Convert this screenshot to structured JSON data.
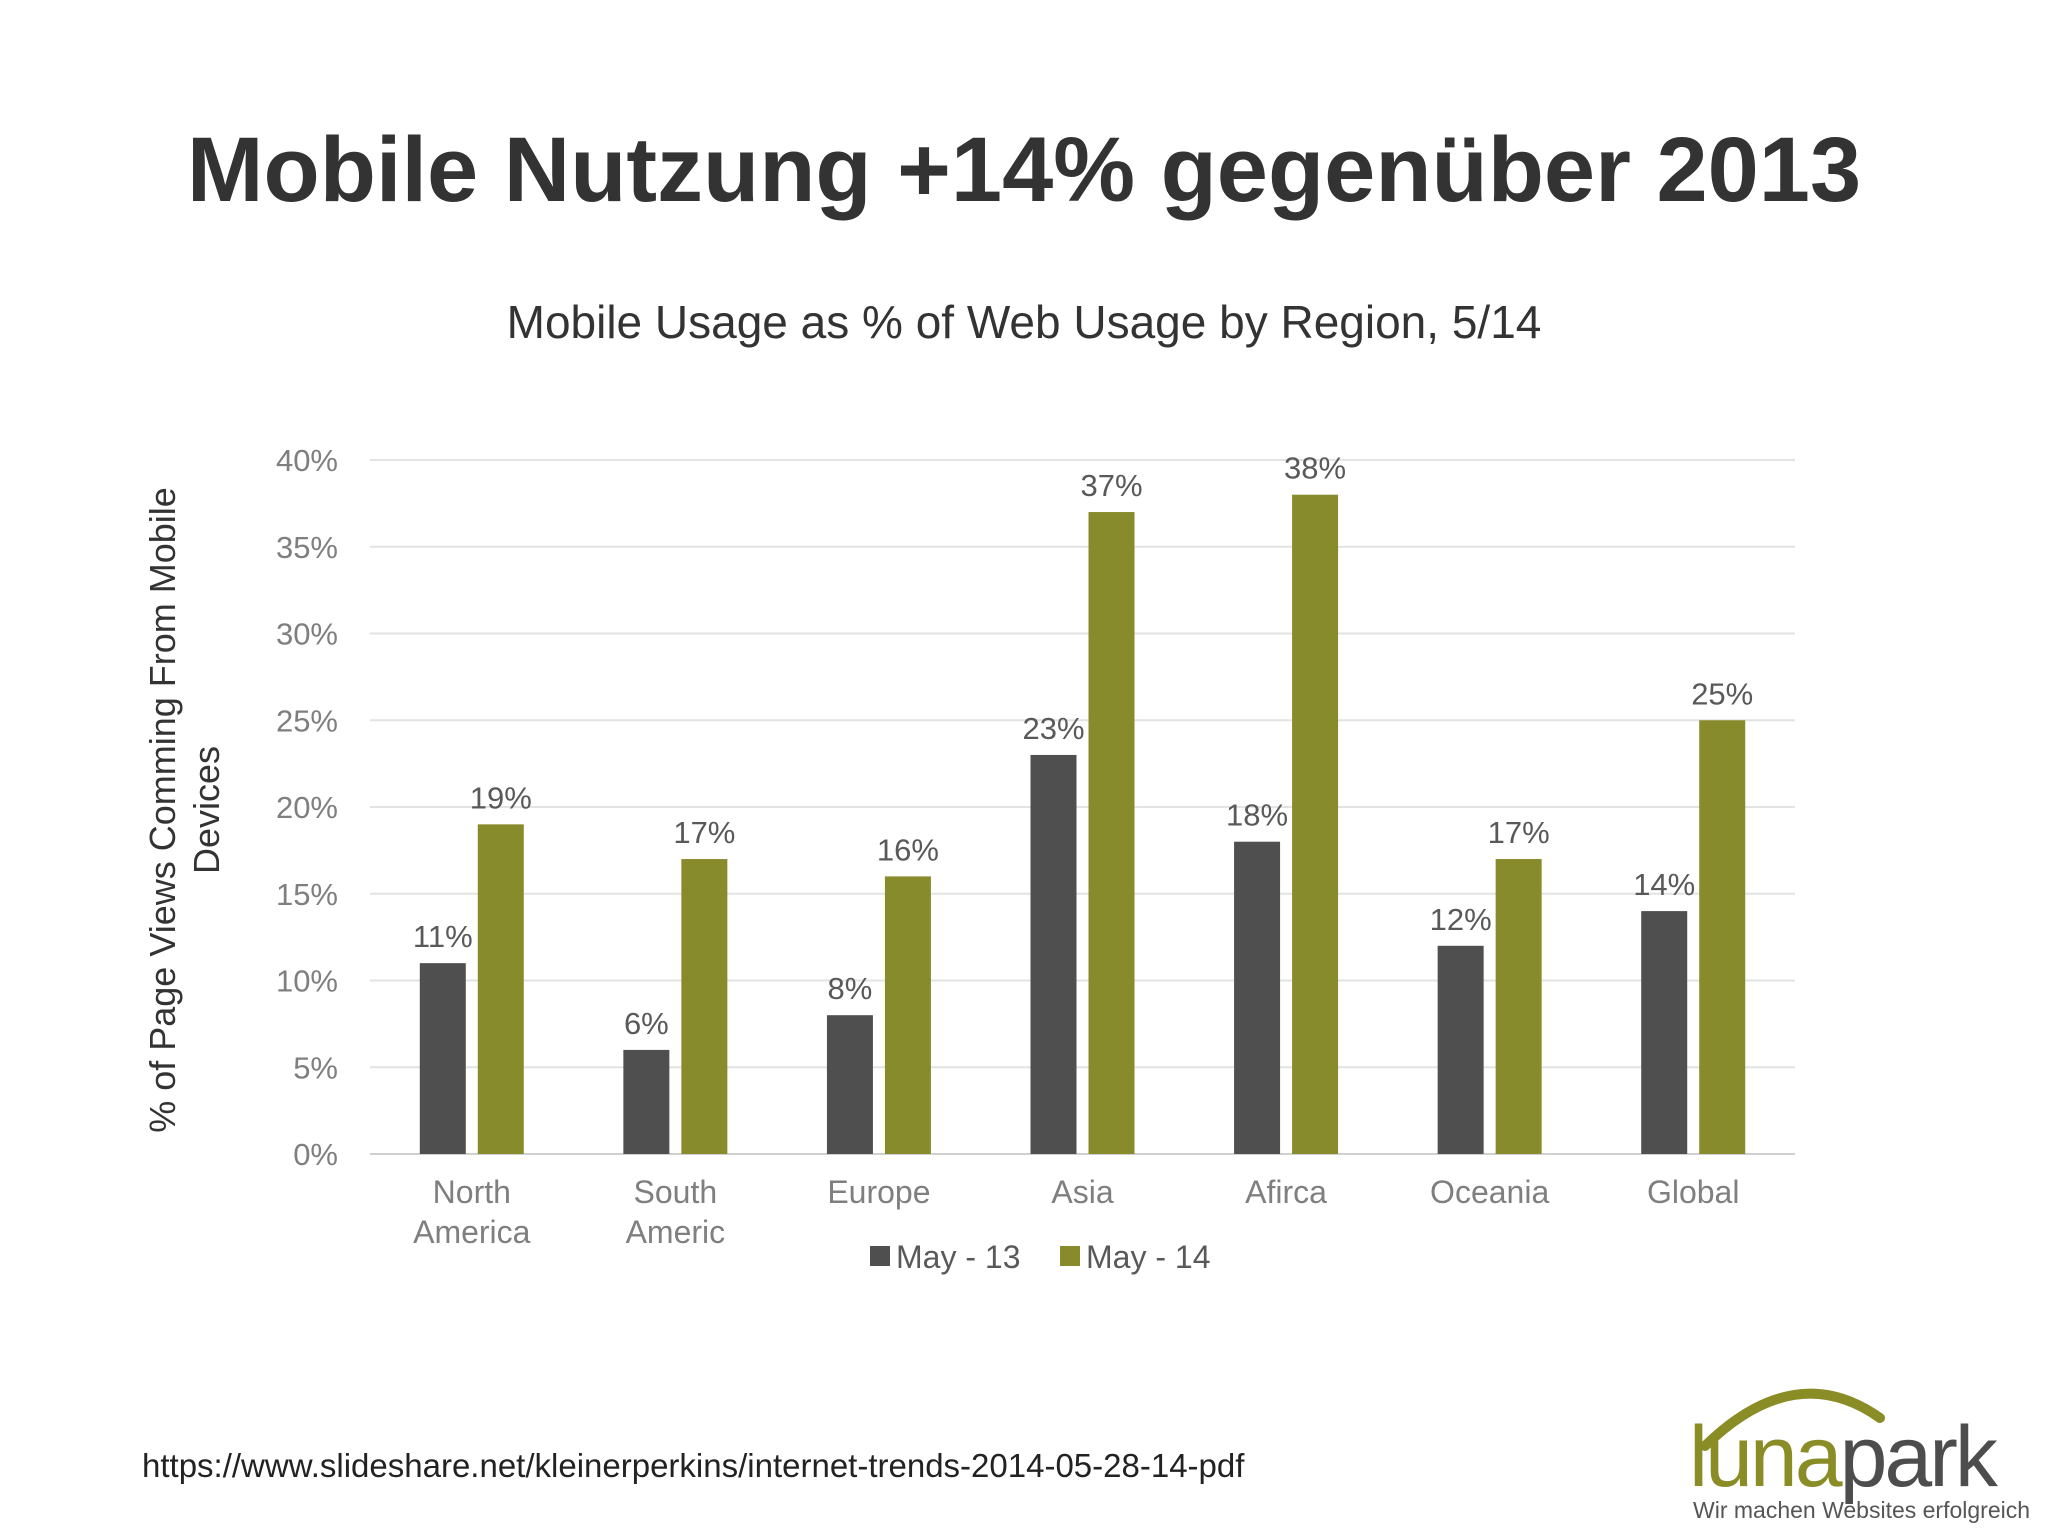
{
  "slide": {
    "title": "Mobile Nutzung +14% gegenüber 2013",
    "source": "https://www.slideshare.net/kleinerperkins/internet-trends-2014-05-28-14-pdf"
  },
  "logo": {
    "brand_part1": "luna",
    "brand_part2": "park",
    "tagline": "Wir machen Websites erfolgreich",
    "colors": {
      "luna": "#8a8d26",
      "park": "#4d4d4d",
      "arc": "#8a8d26"
    }
  },
  "chart_data": {
    "type": "bar",
    "title": "Mobile Usage as % of Web Usage by Region, 5/14",
    "ylabel": "% of Page Views Comming From Mobile Devices",
    "ylabel_lines": [
      "% of Page Views Comming From Mobile",
      "Devices"
    ],
    "xlabel": "",
    "ylim": [
      0,
      40
    ],
    "yticks": [
      0,
      5,
      10,
      15,
      20,
      25,
      30,
      35,
      40
    ],
    "ytick_format": "%",
    "grid": true,
    "legend_position": "bottom",
    "categories": [
      [
        "North",
        "America"
      ],
      [
        "South",
        "Americ"
      ],
      [
        "Europe"
      ],
      [
        "Asia"
      ],
      [
        "Afirca"
      ],
      [
        "Oceania"
      ],
      [
        "Global"
      ]
    ],
    "series": [
      {
        "name": "May - 13",
        "color": "#4f4f4f",
        "values": [
          11,
          6,
          8,
          23,
          18,
          12,
          14
        ]
      },
      {
        "name": "May - 14",
        "color": "#878b2b",
        "values": [
          19,
          17,
          16,
          37,
          38,
          17,
          25
        ]
      }
    ]
  }
}
